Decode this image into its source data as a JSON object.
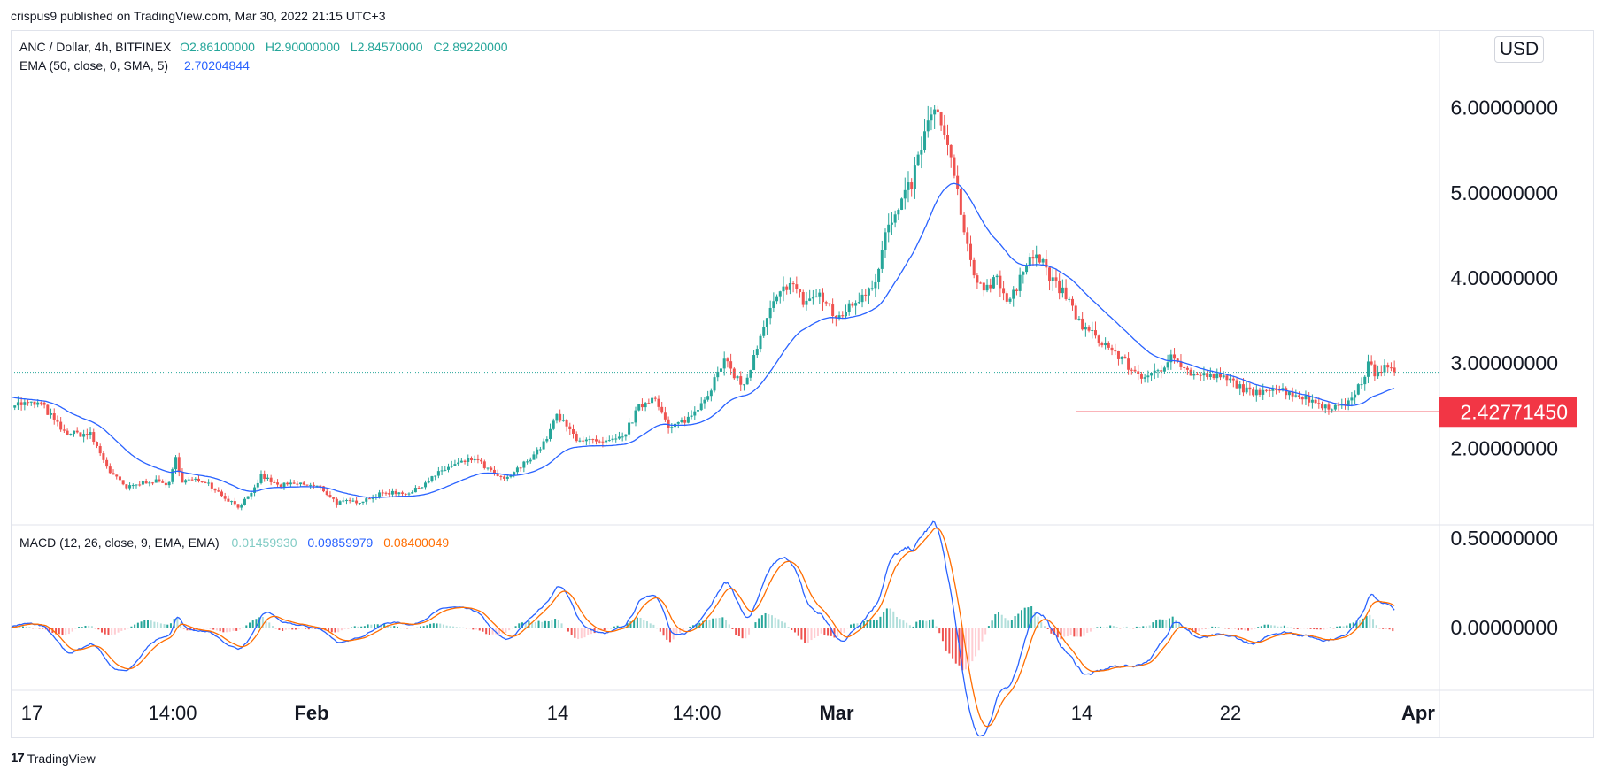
{
  "header": {
    "publisher_line": "crispus9 published on TradingView.com, Mar 30, 2022 21:15 UTC+3"
  },
  "footer": {
    "brand": "TradingView"
  },
  "price_pane": {
    "symbol_line": "ANC / Dollar, 4h, BITFINEX",
    "ohlc": {
      "o": "O2.86100000",
      "h": "H2.90000000",
      "l": "L2.84570000",
      "c": "C2.89220000"
    },
    "ema_label": "EMA (50, close, 0, SMA, 5)",
    "ema_value": "2.70204844",
    "currency": "USD",
    "level_label": "2.42771450"
  },
  "macd_pane": {
    "label": "MACD (12, 26, close, 9, EMA, EMA)",
    "hist_value": "0.01459930",
    "macd_value": "0.09859979",
    "signal_value": "0.08400049"
  },
  "colors": {
    "up": "#26a69a",
    "down": "#ef5350",
    "ema": "#2962ff",
    "macd": "#2962ff",
    "signal": "#ff6d00",
    "level": "#f23645",
    "grid": "#e0e3eb"
  },
  "chart_data": [
    {
      "type": "candlestick",
      "title": "ANC / Dollar, 4h, BITFINEX",
      "y_tick_labels": [
        "6.00000000",
        "5.00000000",
        "4.00000000",
        "3.00000000",
        "2.00000000"
      ],
      "ylim": [
        1.1,
        6.9
      ],
      "x_tick_labels": [
        "17",
        "14:00",
        "Feb",
        "14",
        "14:00",
        "Mar",
        "14",
        "22",
        "Apr"
      ],
      "anchors": [
        [
          0,
          2.52
        ],
        [
          18,
          2.52
        ],
        [
          32,
          2.18
        ],
        [
          48,
          2.16
        ],
        [
          60,
          1.72
        ],
        [
          70,
          1.53
        ],
        [
          84,
          1.62
        ],
        [
          96,
          1.58
        ],
        [
          100,
          1.88
        ],
        [
          104,
          1.62
        ],
        [
          118,
          1.62
        ],
        [
          130,
          1.42
        ],
        [
          138,
          1.32
        ],
        [
          146,
          1.45
        ],
        [
          152,
          1.68
        ],
        [
          162,
          1.56
        ],
        [
          176,
          1.58
        ],
        [
          188,
          1.54
        ],
        [
          198,
          1.36
        ],
        [
          212,
          1.38
        ],
        [
          228,
          1.48
        ],
        [
          244,
          1.48
        ],
        [
          254,
          1.63
        ],
        [
          266,
          1.78
        ],
        [
          282,
          1.88
        ],
        [
          292,
          1.72
        ],
        [
          300,
          1.62
        ],
        [
          310,
          1.78
        ],
        [
          324,
          2.05
        ],
        [
          332,
          2.38
        ],
        [
          344,
          2.12
        ],
        [
          360,
          2.05
        ],
        [
          372,
          2.12
        ],
        [
          382,
          2.48
        ],
        [
          392,
          2.62
        ],
        [
          400,
          2.22
        ],
        [
          414,
          2.38
        ],
        [
          424,
          2.65
        ],
        [
          434,
          3.02
        ],
        [
          446,
          2.72
        ],
        [
          456,
          3.28
        ],
        [
          462,
          3.62
        ],
        [
          474,
          3.98
        ],
        [
          482,
          3.72
        ],
        [
          492,
          3.8
        ],
        [
          502,
          3.52
        ],
        [
          514,
          3.72
        ],
        [
          526,
          3.98
        ],
        [
          532,
          4.52
        ],
        [
          540,
          4.78
        ],
        [
          548,
          5.12
        ],
        [
          554,
          5.55
        ],
        [
          562,
          6.02
        ],
        [
          570,
          5.52
        ],
        [
          576,
          5.02
        ],
        [
          580,
          4.48
        ],
        [
          586,
          4.02
        ],
        [
          594,
          3.88
        ],
        [
          600,
          4.05
        ],
        [
          606,
          3.72
        ],
        [
          612,
          3.85
        ],
        [
          620,
          4.32
        ],
        [
          628,
          4.18
        ],
        [
          634,
          3.95
        ],
        [
          642,
          3.78
        ],
        [
          652,
          3.42
        ],
        [
          662,
          3.28
        ],
        [
          672,
          3.12
        ],
        [
          682,
          2.92
        ],
        [
          692,
          2.82
        ],
        [
          702,
          2.95
        ],
        [
          706,
          3.15
        ],
        [
          714,
          2.92
        ],
        [
          722,
          2.85
        ],
        [
          732,
          2.85
        ],
        [
          744,
          2.78
        ],
        [
          756,
          2.62
        ],
        [
          764,
          2.72
        ],
        [
          774,
          2.68
        ],
        [
          784,
          2.62
        ],
        [
          792,
          2.55
        ],
        [
          800,
          2.5
        ],
        [
          810,
          2.48
        ],
        [
          816,
          2.62
        ],
        [
          822,
          2.75
        ],
        [
          826,
          3.0
        ],
        [
          830,
          2.88
        ],
        [
          836,
          2.95
        ],
        [
          842,
          2.89
        ]
      ],
      "last_close": 2.8922,
      "series": [
        {
          "name": "EMA (50, close, 0, SMA, 5)",
          "last_value": 2.70204844
        }
      ],
      "level": 2.4277145,
      "close_line": 2.8922
    },
    {
      "type": "line",
      "title": "MACD (12, 26, close, 9, EMA, EMA)",
      "y_tick_labels": [
        "0.50000000",
        "0.00000000"
      ],
      "ylim": [
        -0.35,
        0.57
      ],
      "series": [
        {
          "name": "MACD",
          "last_value": 0.09859979
        },
        {
          "name": "Signal",
          "last_value": 0.08400049
        },
        {
          "name": "Histogram",
          "last_value": 0.0145993
        }
      ]
    }
  ]
}
